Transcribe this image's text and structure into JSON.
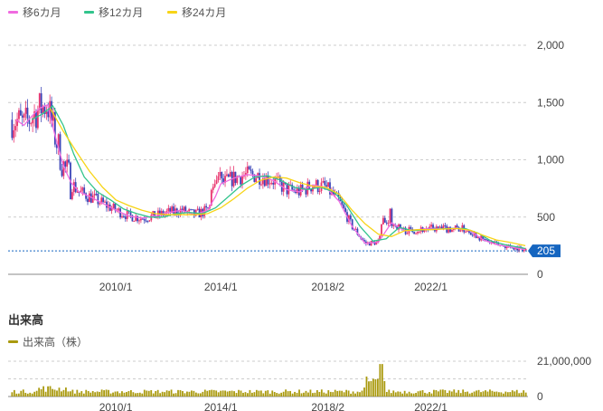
{
  "legend": [
    {
      "label": "移6カ月",
      "color": "#f06be0"
    },
    {
      "label": "移12カ月",
      "color": "#32c48c"
    },
    {
      "label": "移24カ月",
      "color": "#f7d417"
    }
  ],
  "volume_title": "出来高",
  "volume_legend": {
    "label": "出来高（株）",
    "color": "#aa9a0f"
  },
  "current_price_label": "205",
  "colors": {
    "up": "#e8336e",
    "down": "#3b45b8",
    "grid": "#cccccc",
    "badge": "#1565c0",
    "volume": "#aa9a0f"
  },
  "chart_data": [
    {
      "type": "line",
      "x_ticks": [
        "2010/1",
        "2014/1",
        "2018/2",
        "2022/1"
      ],
      "x_tick_dates": [
        2010.0,
        2014.0,
        2018.08,
        2022.0
      ],
      "x_range": [
        2005.9,
        2025.7
      ],
      "y_ticks": [
        "2,000",
        "1,500",
        "1,000",
        "500",
        "0"
      ],
      "y_range": [
        0,
        2000
      ],
      "current_value": 205,
      "series": [
        {
          "name": "移6カ月",
          "x": [
            2006.2,
            2006.5,
            2006.8,
            2007.1,
            2007.4,
            2007.7,
            2008.0,
            2008.3,
            2008.6,
            2009.0,
            2009.5,
            2010.0,
            2010.5,
            2011.0,
            2011.5,
            2012.0,
            2012.5,
            2013.0,
            2013.5,
            2013.8,
            2014.0,
            2014.5,
            2015.0,
            2015.5,
            2016.0,
            2016.5,
            2017.0,
            2017.5,
            2018.0,
            2018.5,
            2019.0,
            2019.5,
            2020.0,
            2020.5,
            2021.0,
            2021.5,
            2022.0,
            2022.5,
            2023.0,
            2023.5,
            2024.0,
            2024.5,
            2025.0,
            2025.6
          ],
          "y": [
            1350,
            1300,
            1380,
            1450,
            1480,
            1200,
            950,
            800,
            720,
            680,
            620,
            560,
            510,
            490,
            510,
            540,
            560,
            520,
            560,
            680,
            790,
            840,
            870,
            860,
            820,
            740,
            720,
            780,
            760,
            640,
            420,
            270,
            280,
            450,
            380,
            390,
            400,
            395,
            405,
            380,
            300,
            260,
            240,
            215
          ]
        },
        {
          "name": "移12カ月",
          "x": [
            2006.8,
            2007.2,
            2007.6,
            2008.0,
            2008.4,
            2008.8,
            2009.3,
            2009.8,
            2010.3,
            2010.8,
            2011.3,
            2011.8,
            2012.3,
            2012.8,
            2013.3,
            2013.8,
            2014.3,
            2014.8,
            2015.3,
            2015.8,
            2016.3,
            2016.8,
            2017.3,
            2017.8,
            2018.3,
            2018.8,
            2019.3,
            2019.8,
            2020.3,
            2020.8,
            2021.3,
            2021.8,
            2022.3,
            2022.8,
            2023.3,
            2023.8,
            2024.3,
            2024.8,
            2025.6
          ],
          "y": [
            1350,
            1400,
            1470,
            1300,
            1050,
            850,
            720,
            650,
            570,
            530,
            500,
            500,
            530,
            540,
            530,
            580,
            680,
            780,
            850,
            860,
            820,
            760,
            740,
            760,
            720,
            600,
            420,
            290,
            310,
            410,
            380,
            390,
            395,
            400,
            400,
            360,
            290,
            260,
            225
          ]
        },
        {
          "name": "移24カ月",
          "x": [
            2007.5,
            2008.0,
            2008.5,
            2009.0,
            2009.5,
            2010.0,
            2010.5,
            2011.0,
            2011.5,
            2012.0,
            2012.5,
            2013.0,
            2013.5,
            2014.0,
            2014.5,
            2015.0,
            2015.5,
            2016.0,
            2016.5,
            2017.0,
            2017.5,
            2018.0,
            2018.5,
            2019.0,
            2019.5,
            2020.0,
            2020.5,
            2021.0,
            2021.5,
            2022.0,
            2022.5,
            2023.0,
            2023.5,
            2024.0,
            2024.5,
            2025.0,
            2025.6
          ],
          "y": [
            1450,
            1250,
            1070,
            900,
            760,
            650,
            600,
            560,
            530,
            520,
            520,
            520,
            530,
            580,
            660,
            750,
            820,
            850,
            840,
            800,
            770,
            760,
            700,
            560,
            440,
            350,
            330,
            380,
            390,
            390,
            395,
            400,
            385,
            340,
            300,
            280,
            250
          ]
        }
      ]
    },
    {
      "type": "bar",
      "x_ticks": [
        "2010/1",
        "2014/1",
        "2018/2",
        "2022/1"
      ],
      "x_tick_dates": [
        2010.0,
        2014.0,
        2018.08,
        2022.0
      ],
      "x_range": [
        2005.9,
        2025.7
      ],
      "y_ticks": [
        "21,000,000",
        "0"
      ],
      "y_range": [
        0,
        21000000
      ]
    }
  ]
}
